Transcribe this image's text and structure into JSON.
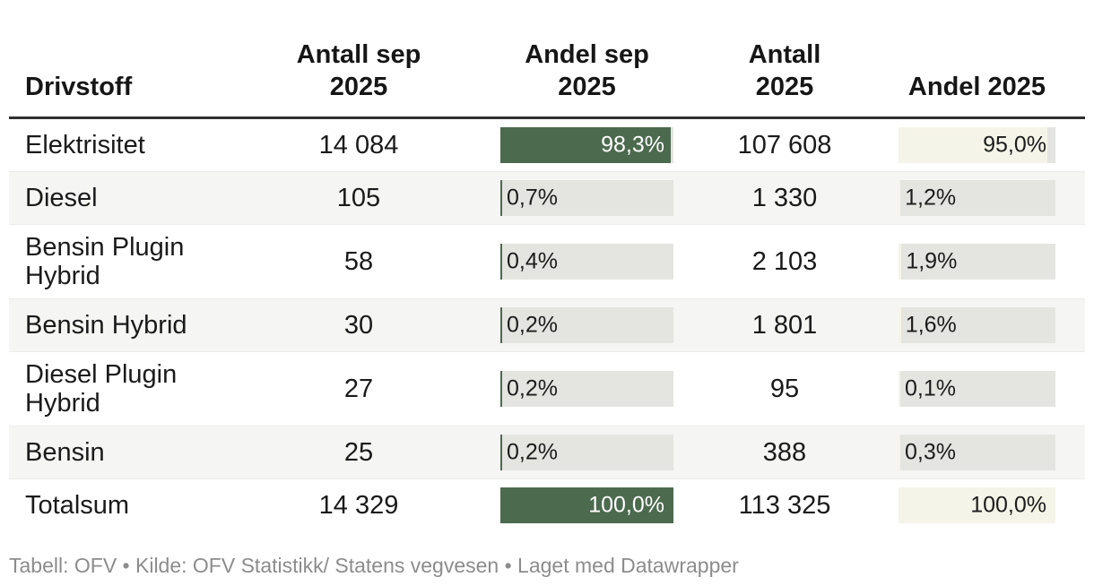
{
  "colors": {
    "bar_green": "#4c6a4e",
    "bar_cream": "#f5f4e8",
    "bar_track": "#e4e4e1",
    "row_stripe": "#f5f5f4",
    "header_rule": "#2f2f2f",
    "body_text": "#1a1a1a",
    "bar_label_on_green": "#ffffff",
    "bar_label_on_light": "#1c1c1c",
    "footer_text": "#8c8c8c"
  },
  "header": {
    "drivstoff": [
      "Drivstoff"
    ],
    "antall_sep": [
      "Antall sep",
      "2025"
    ],
    "andel_sep": [
      "Andel sep",
      "2025"
    ],
    "antall": [
      "Antall",
      "2025"
    ],
    "andel": [
      "Andel 2025"
    ]
  },
  "rows": [
    {
      "label": "Elektrisitet",
      "antall_sep": "14 084",
      "andel_sep_pct": 98.3,
      "andel_sep": "98,3%",
      "antall": "107 608",
      "andel_pct": 95.0,
      "andel": "95,0%"
    },
    {
      "label": "Diesel",
      "antall_sep": "105",
      "andel_sep_pct": 0.7,
      "andel_sep": "0,7%",
      "antall": "1 330",
      "andel_pct": 1.2,
      "andel": "1,2%"
    },
    {
      "label": "Bensin Plugin Hybrid",
      "antall_sep": "58",
      "andel_sep_pct": 0.4,
      "andel_sep": "0,4%",
      "antall": "2 103",
      "andel_pct": 1.9,
      "andel": "1,9%"
    },
    {
      "label": "Bensin Hybrid",
      "antall_sep": "30",
      "andel_sep_pct": 0.2,
      "andel_sep": "0,2%",
      "antall": "1 801",
      "andel_pct": 1.6,
      "andel": "1,6%"
    },
    {
      "label": "Diesel Plugin Hybrid",
      "antall_sep": "27",
      "andel_sep_pct": 0.2,
      "andel_sep": "0,2%",
      "antall": "95",
      "andel_pct": 0.1,
      "andel": "0,1%"
    },
    {
      "label": "Bensin",
      "antall_sep": "25",
      "andel_sep_pct": 0.2,
      "andel_sep": "0,2%",
      "antall": "388",
      "andel_pct": 0.3,
      "andel": "0,3%"
    },
    {
      "label": "Totalsum",
      "antall_sep": "14 329",
      "andel_sep_pct": 100.0,
      "andel_sep": "100,0%",
      "antall": "113 325",
      "andel_pct": 100.0,
      "andel": "100,0%"
    }
  ],
  "footer": {
    "credit": "Tabell: OFV • Kilde: OFV Statistikk/ Statens vegvesen • Laget med Datawrapper"
  },
  "chart_data": {
    "type": "table",
    "title": "",
    "columns": [
      "Drivstoff",
      "Antall sep 2025",
      "Andel sep 2025",
      "Antall 2025",
      "Andel 2025"
    ],
    "rows": [
      [
        "Elektrisitet",
        "14 084",
        "98,3%",
        "107 608",
        "95,0%"
      ],
      [
        "Diesel",
        "105",
        "0,7%",
        "1 330",
        "1,2%"
      ],
      [
        "Bensin Plugin Hybrid",
        "58",
        "0,4%",
        "2 103",
        "1,9%"
      ],
      [
        "Bensin Hybrid",
        "30",
        "0,2%",
        "1 801",
        "1,6%"
      ],
      [
        "Diesel Plugin Hybrid",
        "27",
        "0,2%",
        "95",
        "0,1%"
      ],
      [
        "Bensin",
        "25",
        "0,2%",
        "388",
        "0,3%"
      ],
      [
        "Totalsum",
        "14 329",
        "100,0%",
        "113 325",
        "100,0%"
      ]
    ],
    "bar_columns": [
      {
        "column": "Andel sep 2025",
        "values_pct": [
          98.3,
          0.7,
          0.4,
          0.2,
          0.2,
          0.2,
          100.0
        ],
        "scale_max": 100,
        "bar_color": "#4c6a4e"
      },
      {
        "column": "Andel 2025",
        "values_pct": [
          95.0,
          1.2,
          1.9,
          1.6,
          0.1,
          0.3,
          100.0
        ],
        "scale_max": 100,
        "bar_color": "#f5f4e8"
      }
    ],
    "footnote": "Tabell: OFV • Kilde: OFV Statistikk/ Statens vegvesen • Laget med Datawrapper"
  }
}
